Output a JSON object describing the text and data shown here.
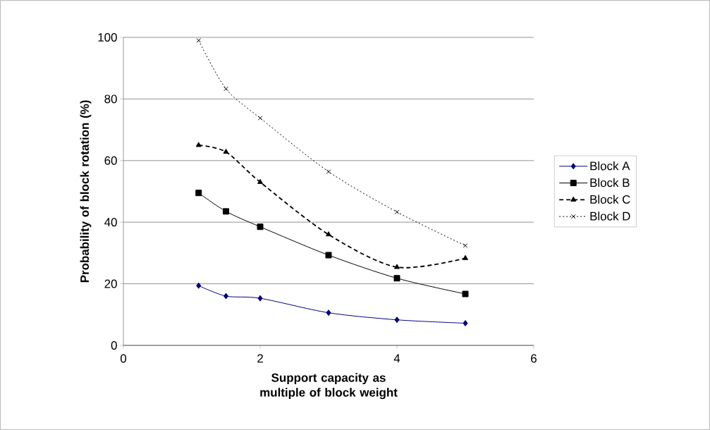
{
  "chart_data": {
    "type": "line",
    "xlabel": "Support capacity as multiple of block weight",
    "ylabel": "Probability of block rotation (%)",
    "x": [
      1.1,
      1.5,
      2,
      3,
      4,
      5
    ],
    "series": [
      {
        "name": "Block A",
        "color": "#000080",
        "marker": "diamond",
        "line_style": "solid",
        "values": [
          19.4,
          16.0,
          15.3,
          10.6,
          8.3,
          7.2
        ]
      },
      {
        "name": "Block B",
        "color": "#000000",
        "marker": "square",
        "line_style": "solid",
        "values": [
          49.5,
          43.5,
          38.5,
          29.3,
          21.8,
          16.7
        ]
      },
      {
        "name": "Block C",
        "color": "#000000",
        "marker": "triangle",
        "line_style": "dashed",
        "values": [
          65.0,
          62.8,
          53.0,
          36.0,
          25.4,
          28.3
        ]
      },
      {
        "name": "Block D",
        "color": "#000000",
        "marker": "cross",
        "line_style": "dotted",
        "values": [
          99.0,
          83.3,
          73.8,
          56.4,
          43.3,
          32.4
        ]
      }
    ],
    "xlim": [
      0,
      6
    ],
    "xticks": [
      0,
      2,
      4,
      6
    ],
    "ylim": [
      0,
      100
    ],
    "yticks": [
      0,
      20,
      40,
      60,
      80,
      100
    ],
    "grid": "y",
    "legend": "right"
  }
}
